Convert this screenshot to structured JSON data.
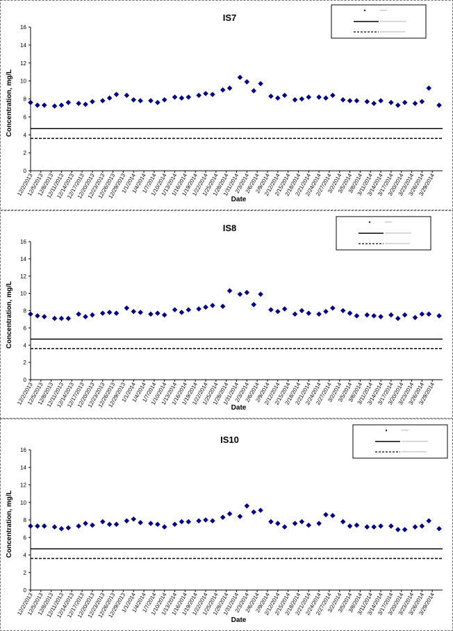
{
  "chart_data": [
    {
      "type": "scatter",
      "title": "IS7",
      "xlabel": "Date",
      "ylabel": "Concentration, mg/L",
      "ylim": [
        0,
        16
      ],
      "yticks": [
        0,
        2,
        4,
        6,
        8,
        10,
        12,
        14,
        16
      ],
      "grid": false,
      "legend": "top-right",
      "x_tick_labels": [
        "12/2/2013",
        "12/5/2013",
        "12/8/2013",
        "12/11/2013",
        "12/14/2013",
        "12/17/2013",
        "12/20/2013",
        "12/23/2013",
        "12/26/2013",
        "12/29/2013",
        "1/1/2014",
        "1/4/2014",
        "1/7/2014",
        "1/10/2014",
        "1/13/2014",
        "1/16/2014",
        "1/19/2014",
        "1/22/2014",
        "1/25/2014",
        "1/28/2014",
        "1/31/2014",
        "2/3/2014",
        "2/6/2014",
        "2/9/2014",
        "2/12/2014",
        "2/15/2014",
        "2/18/2014",
        "2/21/2014",
        "2/24/2014",
        "2/27/2014",
        "3/2/2014",
        "3/5/2014",
        "3/8/2014",
        "3/11/2014",
        "3/14/2014",
        "3/17/2014",
        "3/20/2014",
        "3/23/2014",
        "3/26/2014",
        "3/29/2014"
      ],
      "series": [
        {
          "marker": "diamond",
          "color": "#00008b",
          "points": [
            [
              "2013-12-02",
              7.6
            ],
            [
              "2013-12-04",
              7.3
            ],
            [
              "2013-12-06",
              7.3
            ],
            [
              "2013-12-09",
              7.2
            ],
            [
              "2013-12-11",
              7.3
            ],
            [
              "2013-12-13",
              7.6
            ],
            [
              "2013-12-16",
              7.5
            ],
            [
              "2013-12-18",
              7.4
            ],
            [
              "2013-12-20",
              7.7
            ],
            [
              "2013-12-23",
              7.8
            ],
            [
              "2013-12-25",
              8.1
            ],
            [
              "2013-12-27",
              8.5
            ],
            [
              "2013-12-30",
              8.4
            ],
            [
              "2014-01-01",
              7.9
            ],
            [
              "2014-01-03",
              7.8
            ],
            [
              "2014-01-06",
              7.8
            ],
            [
              "2014-01-08",
              7.6
            ],
            [
              "2014-01-10",
              7.9
            ],
            [
              "2014-01-13",
              8.2
            ],
            [
              "2014-01-15",
              8.1
            ],
            [
              "2014-01-17",
              8.2
            ],
            [
              "2014-01-20",
              8.4
            ],
            [
              "2014-01-22",
              8.6
            ],
            [
              "2014-01-24",
              8.5
            ],
            [
              "2014-01-27",
              9.0
            ],
            [
              "2014-01-29",
              9.2
            ],
            [
              "2014-02-01",
              10.4
            ],
            [
              "2014-02-03",
              9.9
            ],
            [
              "2014-02-05",
              8.9
            ],
            [
              "2014-02-07",
              9.7
            ],
            [
              "2014-02-10",
              8.3
            ],
            [
              "2014-02-12",
              8.1
            ],
            [
              "2014-02-14",
              8.4
            ],
            [
              "2014-02-17",
              7.9
            ],
            [
              "2014-02-19",
              8.0
            ],
            [
              "2014-02-21",
              8.2
            ],
            [
              "2014-02-24",
              8.2
            ],
            [
              "2014-02-26",
              8.1
            ],
            [
              "2014-02-28",
              8.4
            ],
            [
              "2014-03-03",
              7.9
            ],
            [
              "2014-03-05",
              7.8
            ],
            [
              "2014-03-07",
              7.8
            ],
            [
              "2014-03-10",
              7.7
            ],
            [
              "2014-03-12",
              7.5
            ],
            [
              "2014-03-14",
              7.8
            ],
            [
              "2014-03-17",
              7.6
            ],
            [
              "2014-03-19",
              7.3
            ],
            [
              "2014-03-21",
              7.6
            ],
            [
              "2014-03-24",
              7.5
            ],
            [
              "2014-03-26",
              7.7
            ],
            [
              "2014-03-28",
              9.2
            ],
            [
              "2014-03-31",
              7.3
            ]
          ]
        },
        {
          "style": "solid",
          "y": 4.7
        },
        {
          "style": "dashed",
          "y": 3.6
        }
      ]
    },
    {
      "type": "scatter",
      "title": "IS8",
      "xlabel": "Date",
      "ylabel": "Concentration, mg/L",
      "ylim": [
        0,
        16
      ],
      "yticks": [
        0,
        2,
        4,
        6,
        8,
        10,
        12,
        14,
        16
      ],
      "grid": false,
      "legend": "top-right",
      "x_tick_labels": [
        "12/2/2013",
        "12/5/2013",
        "12/8/2013",
        "12/11/2013",
        "12/14/2013",
        "12/17/2013",
        "12/20/2013",
        "12/23/2013",
        "12/26/2013",
        "12/29/2013",
        "1/1/2014",
        "1/4/2014",
        "1/7/2014",
        "1/10/2014",
        "1/13/2014",
        "1/16/2014",
        "1/19/2014",
        "1/22/2014",
        "1/25/2014",
        "1/28/2014",
        "1/31/2014",
        "2/3/2014",
        "2/6/2014",
        "2/9/2014",
        "2/12/2014",
        "2/15/2014",
        "2/18/2014",
        "2/21/2014",
        "2/24/2014",
        "2/27/2014",
        "3/2/2014",
        "3/5/2014",
        "3/8/2014",
        "3/11/2014",
        "3/14/2014",
        "3/17/2014",
        "3/20/2014",
        "3/23/2014",
        "3/26/2014",
        "3/29/2014"
      ],
      "series": [
        {
          "marker": "diamond",
          "color": "#00008b",
          "points": [
            [
              "2013-12-02",
              7.6
            ],
            [
              "2013-12-04",
              7.4
            ],
            [
              "2013-12-06",
              7.3
            ],
            [
              "2013-12-09",
              7.1
            ],
            [
              "2013-12-11",
              7.1
            ],
            [
              "2013-12-13",
              7.1
            ],
            [
              "2013-12-16",
              7.6
            ],
            [
              "2013-12-18",
              7.3
            ],
            [
              "2013-12-20",
              7.5
            ],
            [
              "2013-12-23",
              7.7
            ],
            [
              "2013-12-25",
              7.8
            ],
            [
              "2013-12-27",
              7.7
            ],
            [
              "2013-12-30",
              8.3
            ],
            [
              "2014-01-01",
              7.9
            ],
            [
              "2014-01-03",
              7.8
            ],
            [
              "2014-01-06",
              7.6
            ],
            [
              "2014-01-08",
              7.7
            ],
            [
              "2014-01-10",
              7.5
            ],
            [
              "2014-01-13",
              8.1
            ],
            [
              "2014-01-15",
              7.8
            ],
            [
              "2014-01-17",
              8.1
            ],
            [
              "2014-01-20",
              8.2
            ],
            [
              "2014-01-22",
              8.4
            ],
            [
              "2014-01-24",
              8.6
            ],
            [
              "2014-01-27",
              8.5
            ],
            [
              "2014-01-29",
              10.3
            ],
            [
              "2014-02-01",
              9.9
            ],
            [
              "2014-02-03",
              10.1
            ],
            [
              "2014-02-05",
              8.7
            ],
            [
              "2014-02-07",
              9.9
            ],
            [
              "2014-02-10",
              8.1
            ],
            [
              "2014-02-12",
              7.9
            ],
            [
              "2014-02-14",
              8.2
            ],
            [
              "2014-02-17",
              7.6
            ],
            [
              "2014-02-19",
              8.0
            ],
            [
              "2014-02-21",
              7.7
            ],
            [
              "2014-02-24",
              7.6
            ],
            [
              "2014-02-26",
              7.9
            ],
            [
              "2014-02-28",
              8.3
            ],
            [
              "2014-03-03",
              8.0
            ],
            [
              "2014-03-05",
              7.7
            ],
            [
              "2014-03-07",
              7.4
            ],
            [
              "2014-03-10",
              7.5
            ],
            [
              "2014-03-12",
              7.4
            ],
            [
              "2014-03-14",
              7.3
            ],
            [
              "2014-03-17",
              7.5
            ],
            [
              "2014-03-19",
              7.1
            ],
            [
              "2014-03-21",
              7.5
            ],
            [
              "2014-03-24",
              7.2
            ],
            [
              "2014-03-26",
              7.6
            ],
            [
              "2014-03-28",
              7.6
            ],
            [
              "2014-03-31",
              7.4
            ]
          ]
        },
        {
          "style": "solid",
          "y": 4.7
        },
        {
          "style": "dashed",
          "y": 3.6
        }
      ]
    },
    {
      "type": "scatter",
      "title": "IS10",
      "xlabel": "Date",
      "ylabel": "Concentration, mg/L",
      "ylim": [
        0,
        16
      ],
      "yticks": [
        0,
        2,
        4,
        6,
        8,
        10,
        12,
        14,
        16
      ],
      "grid": false,
      "legend": "top-right",
      "x_tick_labels": [
        "12/2/2013",
        "12/5/2013",
        "12/8/2013",
        "12/11/2013",
        "12/14/2013",
        "12/17/2013",
        "12/20/2013",
        "12/23/2013",
        "12/26/2013",
        "12/29/2013",
        "1/1/2014",
        "1/4/2014",
        "1/7/2014",
        "1/10/2014",
        "1/13/2014",
        "1/16/2014",
        "1/19/2014",
        "1/22/2014",
        "1/25/2014",
        "1/28/2014",
        "1/31/2014",
        "2/3/2014",
        "2/6/2014",
        "2/9/2014",
        "2/12/2014",
        "2/15/2014",
        "2/18/2014",
        "2/21/2014",
        "2/24/2014",
        "2/27/2014",
        "3/2/2014",
        "3/5/2014",
        "3/8/2014",
        "3/11/2014",
        "3/14/2014",
        "3/17/2014",
        "3/20/2014",
        "3/23/2014",
        "3/26/2014",
        "3/29/2014"
      ],
      "series": [
        {
          "marker": "diamond",
          "color": "#00008b",
          "points": [
            [
              "2013-12-02",
              7.3
            ],
            [
              "2013-12-04",
              7.3
            ],
            [
              "2013-12-06",
              7.3
            ],
            [
              "2013-12-09",
              7.2
            ],
            [
              "2013-12-11",
              7.0
            ],
            [
              "2013-12-13",
              7.1
            ],
            [
              "2013-12-16",
              7.3
            ],
            [
              "2013-12-18",
              7.6
            ],
            [
              "2013-12-20",
              7.4
            ],
            [
              "2013-12-23",
              7.8
            ],
            [
              "2013-12-25",
              7.5
            ],
            [
              "2013-12-27",
              7.5
            ],
            [
              "2013-12-30",
              7.9
            ],
            [
              "2014-01-01",
              8.1
            ],
            [
              "2014-01-03",
              7.7
            ],
            [
              "2014-01-06",
              7.6
            ],
            [
              "2014-01-08",
              7.5
            ],
            [
              "2014-01-10",
              7.2
            ],
            [
              "2014-01-13",
              7.5
            ],
            [
              "2014-01-15",
              7.8
            ],
            [
              "2014-01-17",
              7.8
            ],
            [
              "2014-01-20",
              7.9
            ],
            [
              "2014-01-22",
              8.0
            ],
            [
              "2014-01-24",
              7.9
            ],
            [
              "2014-01-27",
              8.3
            ],
            [
              "2014-01-29",
              8.7
            ],
            [
              "2014-02-01",
              8.4
            ],
            [
              "2014-02-03",
              9.6
            ],
            [
              "2014-02-05",
              8.9
            ],
            [
              "2014-02-07",
              9.1
            ],
            [
              "2014-02-10",
              7.8
            ],
            [
              "2014-02-12",
              7.6
            ],
            [
              "2014-02-14",
              7.2
            ],
            [
              "2014-02-17",
              7.6
            ],
            [
              "2014-02-19",
              7.8
            ],
            [
              "2014-02-21",
              7.4
            ],
            [
              "2014-02-24",
              7.6
            ],
            [
              "2014-02-26",
              8.6
            ],
            [
              "2014-02-28",
              8.5
            ],
            [
              "2014-03-03",
              7.8
            ],
            [
              "2014-03-05",
              7.3
            ],
            [
              "2014-03-07",
              7.4
            ],
            [
              "2014-03-10",
              7.2
            ],
            [
              "2014-03-12",
              7.2
            ],
            [
              "2014-03-14",
              7.3
            ],
            [
              "2014-03-17",
              7.3
            ],
            [
              "2014-03-19",
              6.9
            ],
            [
              "2014-03-21",
              6.9
            ],
            [
              "2014-03-24",
              7.2
            ],
            [
              "2014-03-26",
              7.3
            ],
            [
              "2014-03-28",
              7.9
            ],
            [
              "2014-03-31",
              7.0
            ]
          ]
        },
        {
          "style": "solid",
          "y": 4.7
        },
        {
          "style": "dashed",
          "y": 3.6
        }
      ]
    }
  ]
}
